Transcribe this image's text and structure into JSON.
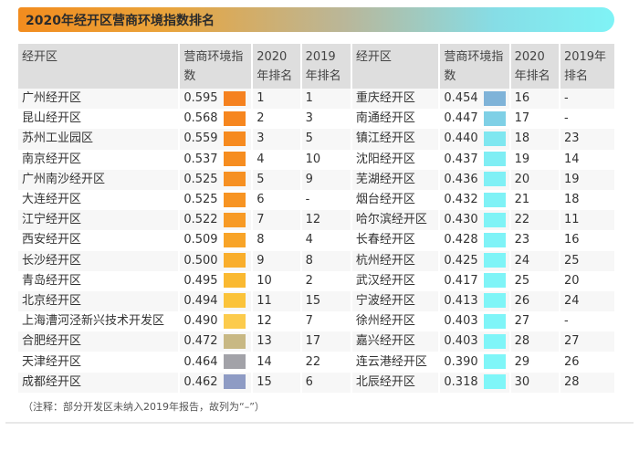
{
  "title": "2020年经开区营商环境指数排名",
  "headers": {
    "zone": "经开区",
    "index": "营商环境指数",
    "rank2020": "2020年排名",
    "rank2019": "2019年排名"
  },
  "left_rows": [
    {
      "name": "广州经开区",
      "value": "0.595",
      "rank2020": "1",
      "rank2019": "1",
      "color": "#f58220"
    },
    {
      "name": "昆山经开区",
      "value": "0.568",
      "rank2020": "2",
      "rank2019": "3",
      "color": "#f6861f"
    },
    {
      "name": "苏州工业园区",
      "value": "0.559",
      "rank2020": "3",
      "rank2019": "5",
      "color": "#f68a1f"
    },
    {
      "name": "南京经开区",
      "value": "0.537",
      "rank2020": "4",
      "rank2019": "10",
      "color": "#f68d20"
    },
    {
      "name": "广州南沙经开区",
      "value": "0.525",
      "rank2020": "5",
      "rank2019": "9",
      "color": "#f69022"
    },
    {
      "name": "大连经开区",
      "value": "0.525",
      "rank2020": "6",
      "rank2019": "-",
      "color": "#f79423"
    },
    {
      "name": "江宁经开区",
      "value": "0.522",
      "rank2020": "7",
      "rank2019": "12",
      "color": "#f79a25"
    },
    {
      "name": "西安经开区",
      "value": "0.509",
      "rank2020": "8",
      "rank2019": "4",
      "color": "#f8a428"
    },
    {
      "name": "长沙经开区",
      "value": "0.500",
      "rank2020": "9",
      "rank2019": "8",
      "color": "#f9ae2c"
    },
    {
      "name": "青岛经开区",
      "value": "0.495",
      "rank2020": "10",
      "rank2019": "2",
      "color": "#fab931"
    },
    {
      "name": "北京经开区",
      "value": "0.494",
      "rank2020": "11",
      "rank2019": "15",
      "color": "#fbc33a"
    },
    {
      "name": "上海漕河泾新兴技术开发区",
      "value": "0.490",
      "rank2020": "12",
      "rank2019": "7",
      "color": "#fccb4c"
    },
    {
      "name": "合肥经开区",
      "value": "0.472",
      "rank2020": "13",
      "rank2019": "17",
      "color": "#c8b884"
    },
    {
      "name": "天津经开区",
      "value": "0.464",
      "rank2020": "14",
      "rank2019": "22",
      "color": "#a2a2a8"
    },
    {
      "name": "成都经开区",
      "value": "0.462",
      "rank2020": "15",
      "rank2019": "6",
      "color": "#8e9bc4"
    }
  ],
  "right_rows": [
    {
      "name": "重庆经开区",
      "value": "0.454",
      "rank2020": "16",
      "rank2019": "-",
      "color": "#7fb3d8"
    },
    {
      "name": "南通经开区",
      "value": "0.447",
      "rank2020": "17",
      "rank2019": "-",
      "color": "#7fd0e6"
    },
    {
      "name": "镇江经开区",
      "value": "0.440",
      "rank2020": "18",
      "rank2019": "23",
      "color": "#7fe7f0"
    },
    {
      "name": "沈阳经开区",
      "value": "0.437",
      "rank2020": "19",
      "rank2019": "14",
      "color": "#7feef4"
    },
    {
      "name": "芜湖经开区",
      "value": "0.436",
      "rank2020": "20",
      "rank2019": "19",
      "color": "#7ff0f5"
    },
    {
      "name": "烟台经开区",
      "value": "0.432",
      "rank2020": "21",
      "rank2019": "18",
      "color": "#7ff2f6"
    },
    {
      "name": "哈尔滨经开区",
      "value": "0.430",
      "rank2020": "22",
      "rank2019": "11",
      "color": "#7ff3f6"
    },
    {
      "name": "长春经开区",
      "value": "0.428",
      "rank2020": "23",
      "rank2019": "16",
      "color": "#7ff3f7"
    },
    {
      "name": "杭州经开区",
      "value": "0.425",
      "rank2020": "24",
      "rank2019": "25",
      "color": "#7ff4f7"
    },
    {
      "name": "武汉经开区",
      "value": "0.417",
      "rank2020": "25",
      "rank2019": "20",
      "color": "#7ff4f7"
    },
    {
      "name": "宁波经开区",
      "value": "0.413",
      "rank2020": "26",
      "rank2019": "24",
      "color": "#7ff5f7"
    },
    {
      "name": "徐州经开区",
      "value": "0.403",
      "rank2020": "27",
      "rank2019": "-",
      "color": "#7ff5f8"
    },
    {
      "name": "嘉兴经开区",
      "value": "0.403",
      "rank2020": "28",
      "rank2019": "27",
      "color": "#7ff5f8"
    },
    {
      "name": "连云港经开区",
      "value": "0.390",
      "rank2020": "29",
      "rank2019": "26",
      "color": "#7ff6f8"
    },
    {
      "name": "北辰经开区",
      "value": "0.318",
      "rank2020": "30",
      "rank2019": "28",
      "color": "#7ff6f8"
    }
  ],
  "note": "（注释：部分开发区未纳入2019年报告，故列为“–”）"
}
